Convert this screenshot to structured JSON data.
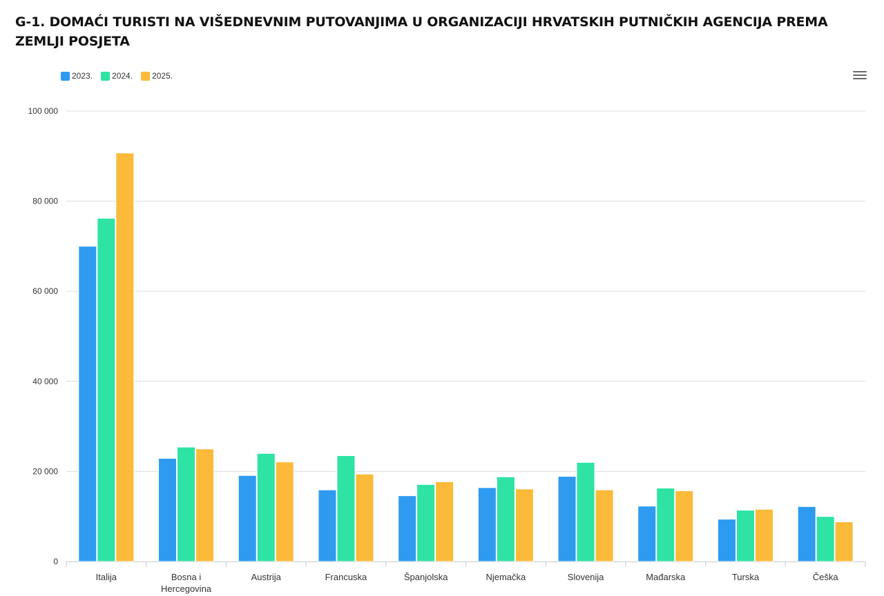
{
  "title": "G-1. DOMAĆI TURISTI NA VIŠEDNEVNIM PUTOVANJIMA U ORGANIZACIJI HRVATSKIH PUTNIČKIH AGENCIJA PREMA ZEMLJI POSJETA",
  "menu_icon": "hamburger-menu-icon",
  "chart_data": {
    "type": "bar",
    "title": "G-1. DOMAĆI TURISTI NA VIŠEDNEVNIM PUTOVANJIMA U ORGANIZACIJI HRVATSKIH PUTNIČKIH AGENCIJA PREMA ZEMLJI POSJETA",
    "xlabel": "",
    "ylabel": "",
    "ylim": [
      0,
      100000
    ],
    "yticks": [
      0,
      20000,
      40000,
      60000,
      80000,
      100000
    ],
    "ytick_labels": [
      "0",
      "20 000",
      "40 000",
      "60 000",
      "80 000",
      "100 000"
    ],
    "categories": [
      "Italija",
      "Bosna i Hercegovina",
      "Austrija",
      "Francuska",
      "Španjolska",
      "Njemačka",
      "Slovenija",
      "Mađarska",
      "Turska",
      "Češka"
    ],
    "series": [
      {
        "name": "2023.",
        "color": "#2e9bf0",
        "values": [
          70000,
          22900,
          19100,
          15900,
          14600,
          16400,
          18900,
          12300,
          9400,
          12200
        ]
      },
      {
        "name": "2024.",
        "color": "#2ee3a3",
        "values": [
          76200,
          25400,
          24000,
          23500,
          17100,
          18800,
          22000,
          16300,
          11400,
          10000
        ]
      },
      {
        "name": "2025.",
        "color": "#fbba3a",
        "values": [
          90700,
          25000,
          22100,
          19400,
          17700,
          16100,
          15900,
          15700,
          11600,
          8800
        ]
      }
    ],
    "grid": true,
    "legend_position": "top-left"
  }
}
